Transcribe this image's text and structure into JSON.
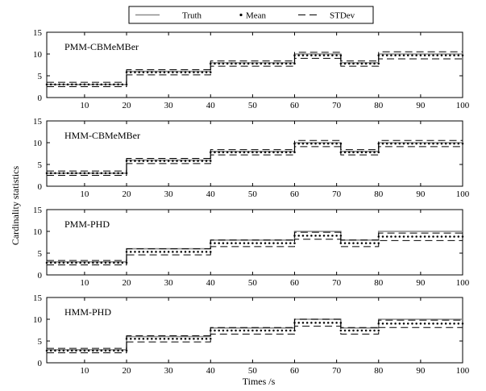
{
  "chart_data": {
    "type": "line",
    "xlabel": "Times /s",
    "ylabel": "Cardinality statistics",
    "xlim": [
      1,
      100
    ],
    "ylim": [
      0,
      15
    ],
    "xticks": [
      10,
      20,
      30,
      40,
      50,
      60,
      70,
      80,
      90,
      100
    ],
    "yticks": [
      0,
      5,
      10,
      15
    ],
    "legend": {
      "placement": "top-center",
      "entries": [
        {
          "name": "Truth",
          "style": "solid",
          "color": "#8c8c8c"
        },
        {
          "name": "Mean",
          "style": "dotted",
          "color": "#000000"
        },
        {
          "name": "STDev",
          "style": "dashed",
          "color": "#000000"
        }
      ]
    },
    "panels": [
      {
        "title": "PMM-CBMeMBer",
        "segments": [
          {
            "x": [
              1,
              20
            ],
            "truth": 3,
            "mean": 3.0,
            "std_upper": 3.5,
            "std_lower": 2.5
          },
          {
            "x": [
              20,
              40
            ],
            "truth": 6,
            "mean": 5.8,
            "std_upper": 6.4,
            "std_lower": 5.2
          },
          {
            "x": [
              40,
              60
            ],
            "truth": 8,
            "mean": 7.8,
            "std_upper": 8.4,
            "std_lower": 7.2
          },
          {
            "x": [
              60,
              71
            ],
            "truth": 10,
            "mean": 9.7,
            "std_upper": 10.4,
            "std_lower": 9.0
          },
          {
            "x": [
              71,
              80
            ],
            "truth": 8,
            "mean": 7.8,
            "std_upper": 8.4,
            "std_lower": 7.2
          },
          {
            "x": [
              80,
              100
            ],
            "truth": 10,
            "mean": 9.7,
            "std_upper": 10.5,
            "std_lower": 8.9
          }
        ]
      },
      {
        "title": "HMM-CBMeMBer",
        "segments": [
          {
            "x": [
              1,
              20
            ],
            "truth": 3,
            "mean": 3.0,
            "std_upper": 3.5,
            "std_lower": 2.5
          },
          {
            "x": [
              20,
              40
            ],
            "truth": 6,
            "mean": 5.8,
            "std_upper": 6.4,
            "std_lower": 5.2
          },
          {
            "x": [
              40,
              60
            ],
            "truth": 8,
            "mean": 7.8,
            "std_upper": 8.4,
            "std_lower": 7.2
          },
          {
            "x": [
              60,
              71
            ],
            "truth": 10,
            "mean": 9.8,
            "std_upper": 10.5,
            "std_lower": 9.1
          },
          {
            "x": [
              71,
              80
            ],
            "truth": 8,
            "mean": 7.8,
            "std_upper": 8.4,
            "std_lower": 7.2
          },
          {
            "x": [
              80,
              100
            ],
            "truth": 10,
            "mean": 9.8,
            "std_upper": 10.5,
            "std_lower": 9.1
          }
        ]
      },
      {
        "title": "PMM-PHD",
        "segments": [
          {
            "x": [
              1,
              20
            ],
            "truth": 3,
            "mean": 2.8,
            "std_upper": 3.3,
            "std_lower": 2.3
          },
          {
            "x": [
              20,
              40
            ],
            "truth": 6,
            "mean": 5.3,
            "std_upper": 6.0,
            "std_lower": 4.6
          },
          {
            "x": [
              40,
              60
            ],
            "truth": 8,
            "mean": 7.3,
            "std_upper": 8.0,
            "std_lower": 6.5
          },
          {
            "x": [
              60,
              71
            ],
            "truth": 10,
            "mean": 9.0,
            "std_upper": 9.8,
            "std_lower": 8.2
          },
          {
            "x": [
              71,
              80
            ],
            "truth": 8,
            "mean": 7.3,
            "std_upper": 8.0,
            "std_lower": 6.5
          },
          {
            "x": [
              80,
              100
            ],
            "truth": 10,
            "mean": 8.8,
            "std_upper": 9.6,
            "std_lower": 7.9
          }
        ]
      },
      {
        "title": "HMM-PHD",
        "segments": [
          {
            "x": [
              1,
              20
            ],
            "truth": 3,
            "mean": 2.8,
            "std_upper": 3.3,
            "std_lower": 2.3
          },
          {
            "x": [
              20,
              40
            ],
            "truth": 6,
            "mean": 5.5,
            "std_upper": 6.2,
            "std_lower": 4.8
          },
          {
            "x": [
              40,
              60
            ],
            "truth": 8,
            "mean": 7.4,
            "std_upper": 8.1,
            "std_lower": 6.6
          },
          {
            "x": [
              60,
              71
            ],
            "truth": 10,
            "mean": 9.2,
            "std_upper": 10.0,
            "std_lower": 8.4
          },
          {
            "x": [
              71,
              80
            ],
            "truth": 8,
            "mean": 7.4,
            "std_upper": 8.1,
            "std_lower": 6.6
          },
          {
            "x": [
              80,
              100
            ],
            "truth": 10,
            "mean": 9.0,
            "std_upper": 9.8,
            "std_lower": 8.1
          }
        ]
      }
    ]
  }
}
